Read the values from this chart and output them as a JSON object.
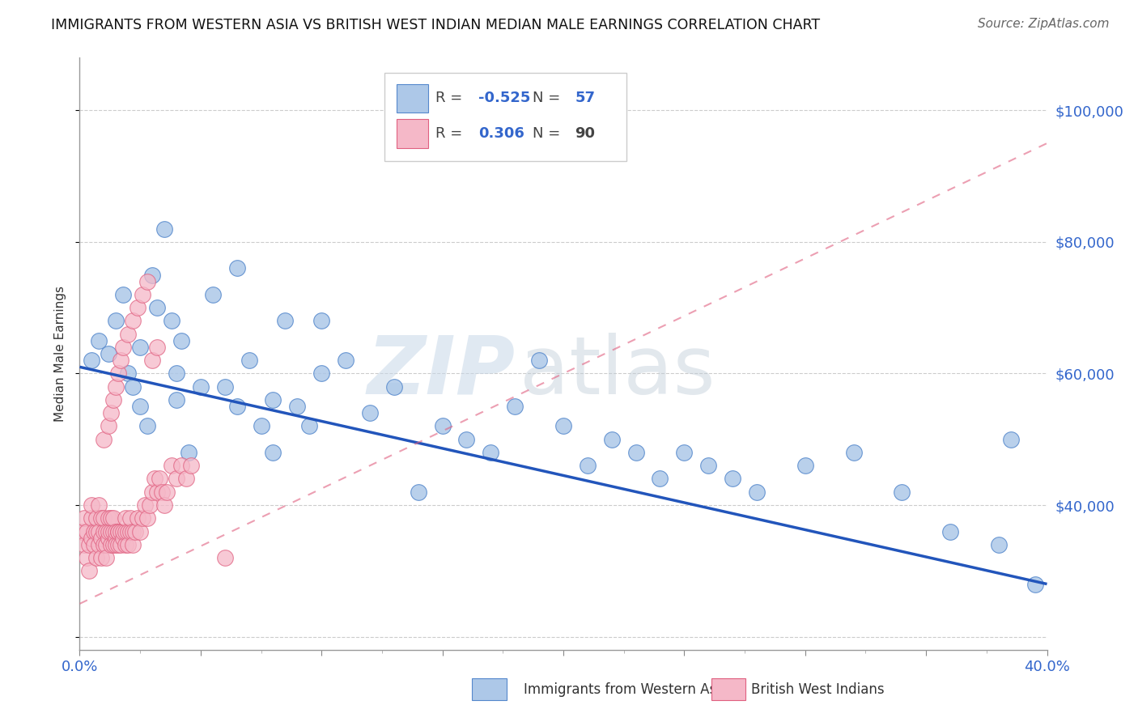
{
  "title": "IMMIGRANTS FROM WESTERN ASIA VS BRITISH WEST INDIAN MEDIAN MALE EARNINGS CORRELATION CHART",
  "source": "Source: ZipAtlas.com",
  "ylabel": "Median Male Earnings",
  "xlim": [
    0.0,
    0.4
  ],
  "ylim": [
    18000,
    108000
  ],
  "yticks": [
    20000,
    40000,
    60000,
    80000,
    100000
  ],
  "xticks": [
    0.0,
    0.05,
    0.1,
    0.15,
    0.2,
    0.25,
    0.3,
    0.35,
    0.4
  ],
  "xtick_labels_show": [
    "0.0%",
    "",
    "",
    "",
    "",
    "",
    "",
    "",
    "40.0%"
  ],
  "blue_color": "#adc8e8",
  "pink_color": "#f5b8c8",
  "blue_edge_color": "#5588cc",
  "pink_edge_color": "#e06080",
  "blue_line_color": "#2255bb",
  "pink_line_color": "#cc5577",
  "blue_label": "Immigrants from Western Asia",
  "pink_label": "British West Indians",
  "blue_R": "-0.525",
  "blue_N": "57",
  "pink_R": "0.306",
  "pink_N": "90",
  "watermark_zip": "ZIP",
  "watermark_atlas": "atlas",
  "blue_trendline": [
    0.0,
    0.4,
    61000,
    28000
  ],
  "pink_trendline": [
    0.0,
    0.4,
    25000,
    95000
  ],
  "blue_scatter_x": [
    0.005,
    0.008,
    0.012,
    0.015,
    0.018,
    0.02,
    0.022,
    0.025,
    0.025,
    0.028,
    0.03,
    0.032,
    0.035,
    0.038,
    0.04,
    0.04,
    0.042,
    0.045,
    0.05,
    0.055,
    0.06,
    0.065,
    0.065,
    0.07,
    0.075,
    0.08,
    0.08,
    0.085,
    0.09,
    0.095,
    0.1,
    0.1,
    0.11,
    0.12,
    0.13,
    0.14,
    0.15,
    0.16,
    0.17,
    0.18,
    0.19,
    0.2,
    0.21,
    0.22,
    0.23,
    0.24,
    0.25,
    0.26,
    0.27,
    0.28,
    0.3,
    0.32,
    0.34,
    0.36,
    0.38,
    0.385,
    0.395
  ],
  "blue_scatter_y": [
    62000,
    65000,
    63000,
    68000,
    72000,
    60000,
    58000,
    55000,
    64000,
    52000,
    75000,
    70000,
    82000,
    68000,
    60000,
    56000,
    65000,
    48000,
    58000,
    72000,
    58000,
    76000,
    55000,
    62000,
    52000,
    48000,
    56000,
    68000,
    55000,
    52000,
    68000,
    60000,
    62000,
    54000,
    58000,
    42000,
    52000,
    50000,
    48000,
    55000,
    62000,
    52000,
    46000,
    50000,
    48000,
    44000,
    48000,
    46000,
    44000,
    42000,
    46000,
    48000,
    42000,
    36000,
    34000,
    50000,
    28000
  ],
  "pink_scatter_x": [
    0.001,
    0.002,
    0.002,
    0.003,
    0.003,
    0.004,
    0.004,
    0.005,
    0.005,
    0.005,
    0.006,
    0.006,
    0.007,
    0.007,
    0.007,
    0.008,
    0.008,
    0.008,
    0.009,
    0.009,
    0.009,
    0.01,
    0.01,
    0.01,
    0.011,
    0.011,
    0.011,
    0.012,
    0.012,
    0.012,
    0.013,
    0.013,
    0.013,
    0.014,
    0.014,
    0.014,
    0.015,
    0.015,
    0.015,
    0.016,
    0.016,
    0.016,
    0.017,
    0.017,
    0.018,
    0.018,
    0.019,
    0.019,
    0.019,
    0.02,
    0.02,
    0.021,
    0.021,
    0.022,
    0.022,
    0.023,
    0.024,
    0.025,
    0.026,
    0.027,
    0.028,
    0.029,
    0.03,
    0.031,
    0.032,
    0.033,
    0.034,
    0.035,
    0.036,
    0.038,
    0.04,
    0.042,
    0.044,
    0.046,
    0.01,
    0.012,
    0.013,
    0.014,
    0.015,
    0.016,
    0.017,
    0.018,
    0.02,
    0.022,
    0.024,
    0.026,
    0.028,
    0.03,
    0.032,
    0.06
  ],
  "pink_scatter_y": [
    36000,
    34000,
    38000,
    36000,
    32000,
    34000,
    30000,
    38000,
    35000,
    40000,
    36000,
    34000,
    32000,
    36000,
    38000,
    34000,
    36000,
    40000,
    35000,
    38000,
    32000,
    36000,
    34000,
    38000,
    36000,
    34000,
    32000,
    35000,
    38000,
    36000,
    34000,
    36000,
    38000,
    34000,
    36000,
    38000,
    35000,
    36000,
    34000,
    36000,
    34000,
    36000,
    34000,
    36000,
    35000,
    36000,
    34000,
    36000,
    38000,
    36000,
    34000,
    36000,
    38000,
    36000,
    34000,
    36000,
    38000,
    36000,
    38000,
    40000,
    38000,
    40000,
    42000,
    44000,
    42000,
    44000,
    42000,
    40000,
    42000,
    46000,
    44000,
    46000,
    44000,
    46000,
    50000,
    52000,
    54000,
    56000,
    58000,
    60000,
    62000,
    64000,
    66000,
    68000,
    70000,
    72000,
    74000,
    62000,
    64000,
    32000
  ]
}
